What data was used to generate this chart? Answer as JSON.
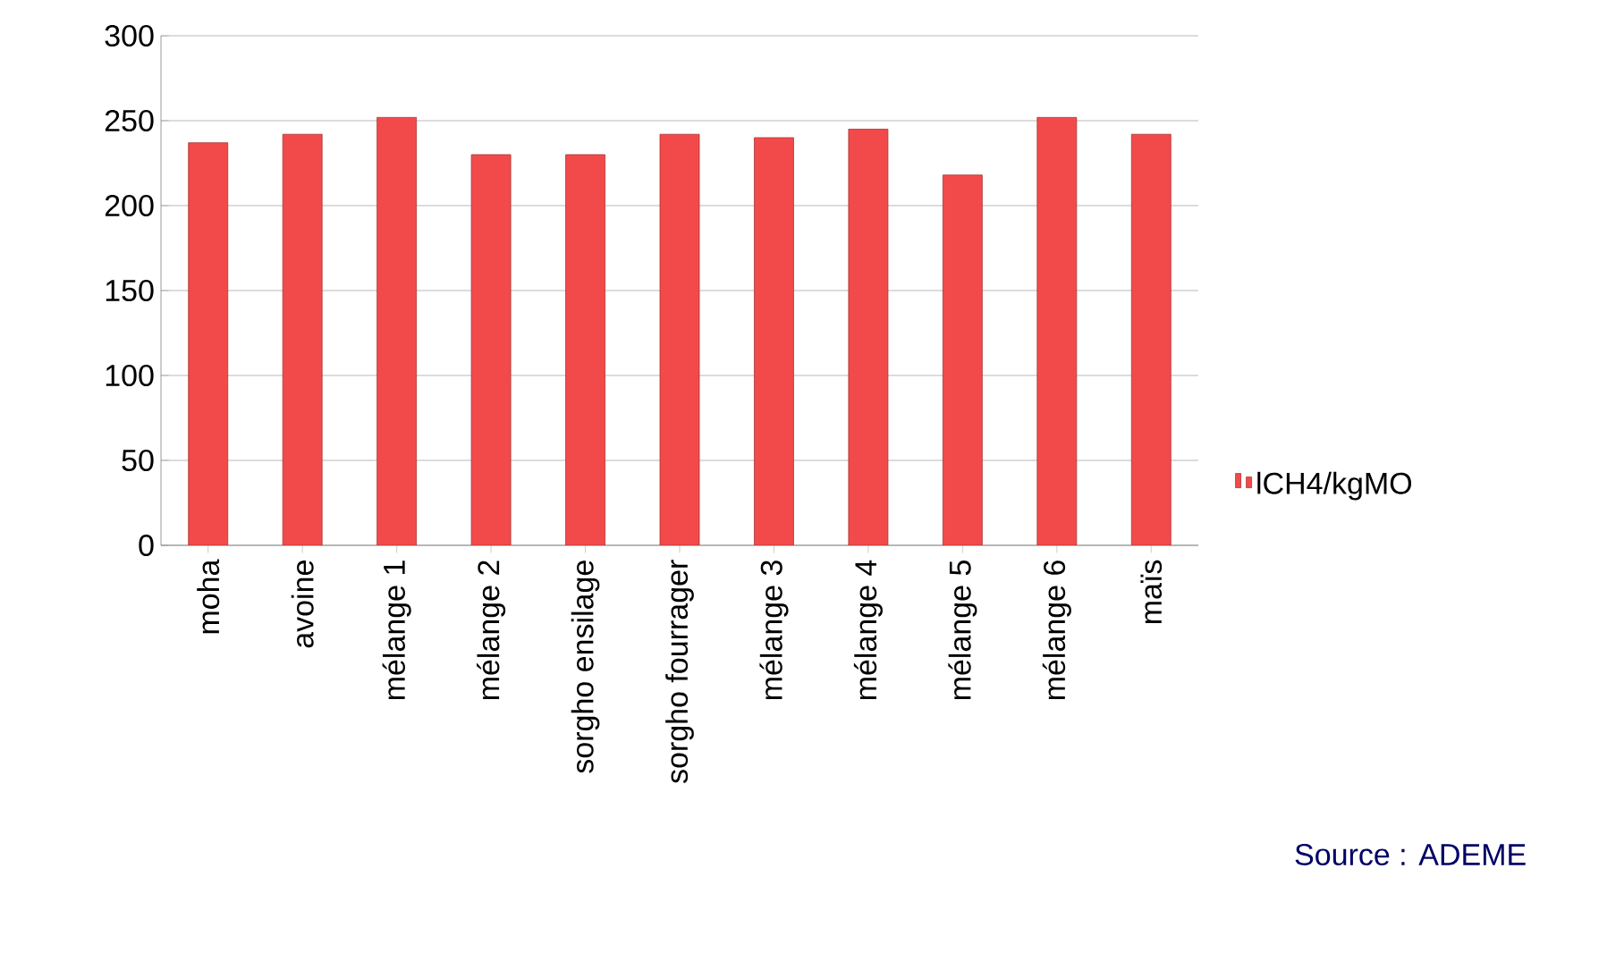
{
  "chart_data": {
    "type": "bar",
    "categories": [
      "moha",
      "avoine",
      "mélange 1",
      "mélange 2",
      "sorgho ensilage",
      "sorgho fourrager",
      "mélange 3",
      "mélange 4",
      "mélange 5",
      "mélange 6",
      "maïs"
    ],
    "series": [
      {
        "name": "lCH4/kgMO",
        "color": "#f24a4a",
        "values": [
          237,
          242,
          252,
          230,
          230,
          242,
          240,
          245,
          218,
          252,
          242
        ]
      }
    ],
    "ylim": [
      0,
      300
    ],
    "yticks": [
      0,
      50,
      100,
      150,
      200,
      250,
      300
    ],
    "grid": "y",
    "legend": "right",
    "annotations": [
      "Source : ADEME"
    ]
  }
}
